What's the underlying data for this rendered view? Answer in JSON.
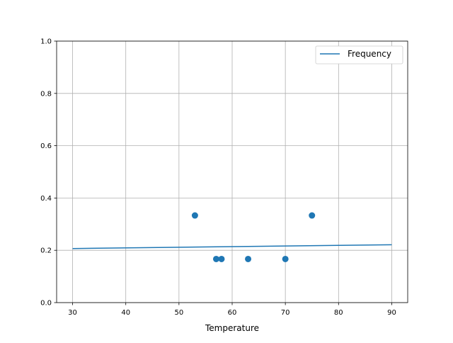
{
  "chart_data": {
    "type": "scatter",
    "title": "",
    "xlabel": "Temperature",
    "ylabel": "",
    "xlim": [
      27,
      93
    ],
    "ylim": [
      0,
      1.0
    ],
    "xticks": [
      30,
      40,
      50,
      60,
      70,
      80,
      90
    ],
    "xtick_labels": [
      "30",
      "40",
      "50",
      "60",
      "70",
      "80",
      "90"
    ],
    "yticks": [
      0,
      0.2,
      0.4,
      0.6,
      0.8,
      1.0
    ],
    "ytick_labels": [
      "0.0",
      "0.2",
      "0.4",
      "0.6",
      "0.8",
      "1.0"
    ],
    "grid": true,
    "legend_position": "top-right",
    "color": "#1f77b4",
    "scatter": {
      "x": [
        53,
        57,
        58,
        63,
        70,
        75
      ],
      "y": [
        0.3333,
        0.1667,
        0.1667,
        0.1667,
        0.1667,
        0.3333
      ]
    },
    "series": [
      {
        "name": "Frequency",
        "type": "line",
        "x": [
          30,
          90
        ],
        "y": [
          0.2068,
          0.2213
        ]
      }
    ]
  }
}
